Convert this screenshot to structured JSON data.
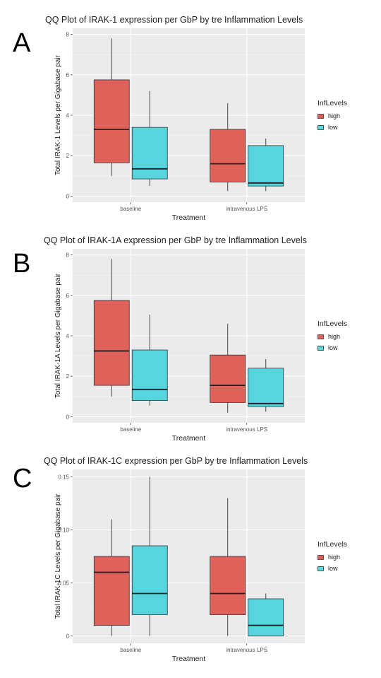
{
  "colors": {
    "high": "#e0605a",
    "low": "#56d5df",
    "panel_bg": "#ebebeb",
    "grid": "#ffffff"
  },
  "chart_data": [
    {
      "panel_label": "A",
      "type": "box",
      "title": "QQ Plot of IRAK-1 expression per GbP by tre Inflammation Levels",
      "xlabel": "Treatment",
      "ylabel": "Total IRAK-1 Levels per Gigabase pair",
      "ylim": [
        -0.3,
        8.3
      ],
      "yticks": [
        0,
        2,
        4,
        6,
        8
      ],
      "ytick_labels": [
        "0",
        "2",
        "4",
        "6",
        "8"
      ],
      "categories": [
        "baseline",
        "intravenous LPS"
      ],
      "legend_title": "InfLevels",
      "series": [
        {
          "name": "high",
          "boxes": [
            {
              "min": 1.0,
              "q1": 1.65,
              "median": 3.3,
              "q3": 5.75,
              "max": 7.8
            },
            {
              "min": 0.25,
              "q1": 0.7,
              "median": 1.6,
              "q3": 3.3,
              "max": 4.6
            }
          ]
        },
        {
          "name": "low",
          "boxes": [
            {
              "min": 0.5,
              "q1": 0.85,
              "median": 1.35,
              "q3": 3.4,
              "max": 5.2
            },
            {
              "min": 0.25,
              "q1": 0.5,
              "median": 0.65,
              "q3": 2.5,
              "max": 2.85
            }
          ]
        }
      ]
    },
    {
      "panel_label": "B",
      "type": "box",
      "title": "QQ Plot of IRAK-1A expression per GbP by tre Inflammation Levels",
      "xlabel": "Treatment",
      "ylabel": "Total IRAK-1A Levels per Gigabase pair",
      "ylim": [
        -0.3,
        8.3
      ],
      "yticks": [
        0,
        2,
        4,
        6,
        8
      ],
      "ytick_labels": [
        "0",
        "2",
        "4",
        "6",
        "8"
      ],
      "categories": [
        "baseline",
        "intravenous LPS"
      ],
      "legend_title": "InfLevels",
      "series": [
        {
          "name": "high",
          "boxes": [
            {
              "min": 1.0,
              "q1": 1.55,
              "median": 3.25,
              "q3": 5.75,
              "max": 7.8
            },
            {
              "min": 0.2,
              "q1": 0.7,
              "median": 1.55,
              "q3": 3.05,
              "max": 4.6
            }
          ]
        },
        {
          "name": "low",
          "boxes": [
            {
              "min": 0.55,
              "q1": 0.8,
              "median": 1.35,
              "q3": 3.3,
              "max": 5.05
            },
            {
              "min": 0.25,
              "q1": 0.5,
              "median": 0.65,
              "q3": 2.4,
              "max": 2.85
            }
          ]
        }
      ]
    },
    {
      "panel_label": "C",
      "type": "box",
      "title": "QQ Plot of IRAK-1C expression per GbP by tre Inflammation Levels",
      "xlabel": "Treatment",
      "ylabel": "Total IRAK-1C Levels per Gigabase pair",
      "ylim": [
        -0.007,
        0.157
      ],
      "yticks": [
        0,
        0.05,
        0.1,
        0.15
      ],
      "ytick_labels": [
        "0",
        "0.05",
        "0.10",
        "0.15"
      ],
      "categories": [
        "baseline",
        "intravenous LPS"
      ],
      "legend_title": "InfLevels",
      "series": [
        {
          "name": "high",
          "boxes": [
            {
              "min": 0.0,
              "q1": 0.01,
              "median": 0.06,
              "q3": 0.075,
              "max": 0.11
            },
            {
              "min": 0.0,
              "q1": 0.02,
              "median": 0.04,
              "q3": 0.075,
              "max": 0.13
            }
          ]
        },
        {
          "name": "low",
          "boxes": [
            {
              "min": 0.0,
              "q1": 0.02,
              "median": 0.04,
              "q3": 0.085,
              "max": 0.15
            },
            {
              "min": 0.0,
              "q1": 0.0,
              "median": 0.01,
              "q3": 0.035,
              "max": 0.04
            }
          ]
        }
      ]
    }
  ]
}
